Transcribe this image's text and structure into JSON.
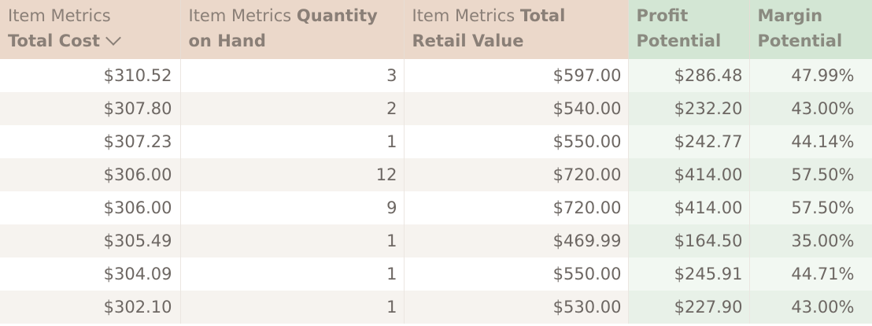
{
  "headers": [
    {
      "prefix": "Item Metrics",
      "bold": "Total Cost",
      "sorted": true
    },
    {
      "prefix": "Item Metrics",
      "bold": "Quantity on Hand"
    },
    {
      "prefix": "Item Metrics",
      "bold": "Total Retail Value"
    },
    {
      "prefix": "",
      "bold": "Profit Potential"
    },
    {
      "prefix": "",
      "bold": "Margin Potential"
    }
  ],
  "rows": [
    [
      "$310.52",
      "3",
      "$597.00",
      "$286.48",
      "47.99%"
    ],
    [
      "$307.80",
      "2",
      "$540.00",
      "$232.20",
      "43.00%"
    ],
    [
      "$307.23",
      "1",
      "$550.00",
      "$242.77",
      "44.14%"
    ],
    [
      "$306.00",
      "12",
      "$720.00",
      "$414.00",
      "57.50%"
    ],
    [
      "$306.00",
      "9",
      "$720.00",
      "$414.00",
      "57.50%"
    ],
    [
      "$305.49",
      "1",
      "$469.99",
      "$164.50",
      "35.00%"
    ],
    [
      "$304.09",
      "1",
      "$550.00",
      "$245.91",
      "44.71%"
    ],
    [
      "$302.10",
      "1",
      "$530.00",
      "$227.90",
      "43.00%"
    ]
  ],
  "colors": {
    "header_tan": "#ebd8ca",
    "header_green": "#d3e6d4",
    "row_alt": "#f6f3ef",
    "green_cell": "#f2f8f2"
  }
}
